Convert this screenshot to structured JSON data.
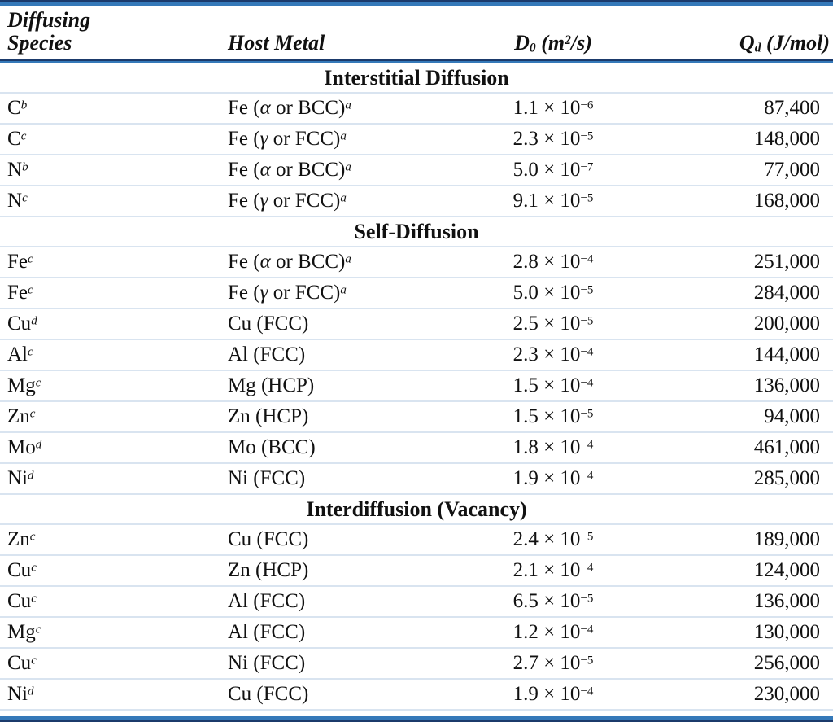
{
  "table": {
    "colors": {
      "rule_navy": "#1b3a6b",
      "rule_blue": "#3579b9",
      "row_separator_pale_blue": "#d9e4f0",
      "text": "#111111",
      "background": "#ffffff"
    },
    "header": {
      "col1_line1": "Diffusing",
      "col1_line2": "Species",
      "col2": "Host Metal",
      "col3": {
        "base": "D",
        "sub": "0",
        "mid": " (m",
        "sup": "2",
        "end": "/s)"
      },
      "col4": {
        "base": "Q",
        "sub": "d",
        "end": " (J/mol)"
      }
    },
    "sections": [
      {
        "title": "Interstitial Diffusion",
        "rows": [
          {
            "species": "C",
            "species_sup": "b",
            "host_pre": "Fe (",
            "host_greek": "α",
            "host_post": " or BCC)",
            "host_sup": "a",
            "d0_base": "1.1 × 10",
            "d0_exp": "−6",
            "qd": "87,400"
          },
          {
            "species": "C",
            "species_sup": "c",
            "host_pre": "Fe (",
            "host_greek": "γ",
            "host_post": " or FCC)",
            "host_sup": "a",
            "d0_base": "2.3 × 10",
            "d0_exp": "−5",
            "qd": "148,000"
          },
          {
            "species": "N",
            "species_sup": "b",
            "host_pre": "Fe (",
            "host_greek": "α",
            "host_post": " or BCC)",
            "host_sup": "a",
            "d0_base": "5.0 × 10",
            "d0_exp": "−7",
            "qd": "77,000"
          },
          {
            "species": "N",
            "species_sup": "c",
            "host_pre": "Fe (",
            "host_greek": "γ",
            "host_post": " or FCC)",
            "host_sup": "a",
            "d0_base": "9.1 × 10",
            "d0_exp": "−5",
            "qd": "168,000"
          }
        ]
      },
      {
        "title": "Self-Diffusion",
        "rows": [
          {
            "species": "Fe",
            "species_sup": "c",
            "host_pre": "Fe (",
            "host_greek": "α",
            "host_post": " or BCC)",
            "host_sup": "a",
            "d0_base": "2.8 × 10",
            "d0_exp": "−4",
            "qd": "251,000"
          },
          {
            "species": "Fe",
            "species_sup": "c",
            "host_pre": "Fe (",
            "host_greek": "γ",
            "host_post": " or FCC)",
            "host_sup": "a",
            "d0_base": "5.0 × 10",
            "d0_exp": "−5",
            "qd": "284,000"
          },
          {
            "species": "Cu",
            "species_sup": "d",
            "host_pre": "Cu (FCC)",
            "host_greek": "",
            "host_post": "",
            "host_sup": "",
            "d0_base": "2.5 × 10",
            "d0_exp": "−5",
            "qd": "200,000"
          },
          {
            "species": "Al",
            "species_sup": "c",
            "host_pre": "Al (FCC)",
            "host_greek": "",
            "host_post": "",
            "host_sup": "",
            "d0_base": "2.3 × 10",
            "d0_exp": "−4",
            "qd": "144,000"
          },
          {
            "species": "Mg",
            "species_sup": "c",
            "host_pre": "Mg (HCP)",
            "host_greek": "",
            "host_post": "",
            "host_sup": "",
            "d0_base": "1.5 × 10",
            "d0_exp": "−4",
            "qd": "136,000"
          },
          {
            "species": "Zn",
            "species_sup": "c",
            "host_pre": "Zn (HCP)",
            "host_greek": "",
            "host_post": "",
            "host_sup": "",
            "d0_base": "1.5 × 10",
            "d0_exp": "−5",
            "qd": "94,000"
          },
          {
            "species": "Mo",
            "species_sup": "d",
            "host_pre": "Mo (BCC)",
            "host_greek": "",
            "host_post": "",
            "host_sup": "",
            "d0_base": "1.8 × 10",
            "d0_exp": "−4",
            "qd": "461,000"
          },
          {
            "species": "Ni",
            "species_sup": "d",
            "host_pre": "Ni (FCC)",
            "host_greek": "",
            "host_post": "",
            "host_sup": "",
            "d0_base": "1.9 × 10",
            "d0_exp": "−4",
            "qd": "285,000"
          }
        ]
      },
      {
        "title": "Interdiffusion (Vacancy)",
        "rows": [
          {
            "species": "Zn",
            "species_sup": "c",
            "host_pre": "Cu (FCC)",
            "host_greek": "",
            "host_post": "",
            "host_sup": "",
            "d0_base": "2.4 × 10",
            "d0_exp": "−5",
            "qd": "189,000"
          },
          {
            "species": "Cu",
            "species_sup": "c",
            "host_pre": "Zn (HCP)",
            "host_greek": "",
            "host_post": "",
            "host_sup": "",
            "d0_base": "2.1 × 10",
            "d0_exp": "−4",
            "qd": "124,000"
          },
          {
            "species": "Cu",
            "species_sup": "c",
            "host_pre": "Al (FCC)",
            "host_greek": "",
            "host_post": "",
            "host_sup": "",
            "d0_base": "6.5 × 10",
            "d0_exp": "−5",
            "qd": "136,000"
          },
          {
            "species": "Mg",
            "species_sup": "c",
            "host_pre": "Al (FCC)",
            "host_greek": "",
            "host_post": "",
            "host_sup": "",
            "d0_base": "1.2 × 10",
            "d0_exp": "−4",
            "qd": "130,000"
          },
          {
            "species": "Cu",
            "species_sup": "c",
            "host_pre": "Ni (FCC)",
            "host_greek": "",
            "host_post": "",
            "host_sup": "",
            "d0_base": "2.7 × 10",
            "d0_exp": "−5",
            "qd": "256,000"
          },
          {
            "species": "Ni",
            "species_sup": "d",
            "host_pre": "Cu (FCC)",
            "host_greek": "",
            "host_post": "",
            "host_sup": "",
            "d0_base": "1.9 × 10",
            "d0_exp": "−4",
            "qd": "230,000"
          }
        ]
      }
    ]
  }
}
